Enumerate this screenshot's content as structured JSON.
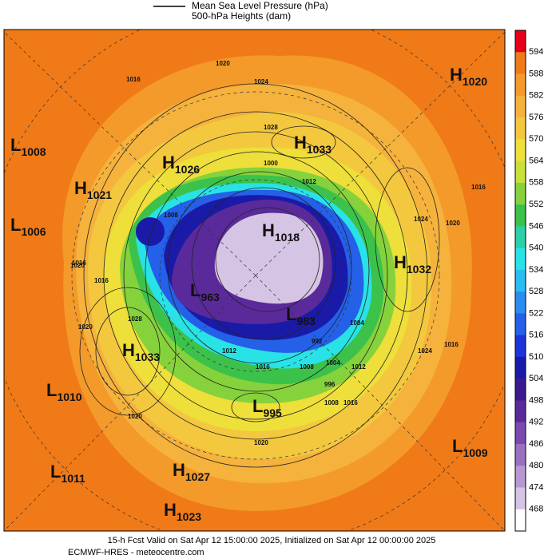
{
  "legend": {
    "mslp": "Mean Sea Level Pressure (hPa)",
    "heights": "500-hPa Heights (dam)"
  },
  "colorbar": {
    "labels": [
      "594",
      "588",
      "582",
      "576",
      "570",
      "564",
      "558",
      "552",
      "546",
      "540",
      "534",
      "528",
      "522",
      "516",
      "510",
      "504",
      "498",
      "492",
      "486",
      "480",
      "474",
      "468"
    ],
    "colors": [
      "#e8001a",
      "#f07a18",
      "#f39a2a",
      "#f5b23c",
      "#f3c83e",
      "#eedf3a",
      "#c8e03a",
      "#86d23c",
      "#3cc24a",
      "#2ccfa8",
      "#28e2e6",
      "#2bbcf0",
      "#2a8cf0",
      "#2460e8",
      "#1c34d8",
      "#1a1aa8",
      "#3a1a8c",
      "#5a2a9a",
      "#7a4aae",
      "#9a70c0",
      "#b898d2",
      "#d6c4e4",
      "#ffffff"
    ]
  },
  "centers": [
    {
      "type": "H",
      "value": "1020"
    },
    {
      "type": "L",
      "value": "1008"
    },
    {
      "type": "H",
      "value": "1033"
    },
    {
      "type": "H",
      "value": "1026"
    },
    {
      "type": "H",
      "value": "1021"
    },
    {
      "type": "L",
      "value": "1006"
    },
    {
      "type": "H",
      "value": "1018"
    },
    {
      "type": "H",
      "value": "1032"
    },
    {
      "type": "L",
      "value": "963"
    },
    {
      "type": "L",
      "value": "983"
    },
    {
      "type": "H",
      "value": "1033"
    },
    {
      "type": "L",
      "value": "1010"
    },
    {
      "type": "L",
      "value": "995"
    },
    {
      "type": "L",
      "value": "1009"
    },
    {
      "type": "L",
      "value": "1011"
    },
    {
      "type": "H",
      "value": "1027"
    },
    {
      "type": "H",
      "value": "1023"
    }
  ],
  "contour_labels": [
    "1016",
    "1024",
    "1020",
    "1028",
    "1000",
    "1012",
    "1008",
    "1024",
    "1020",
    "1016",
    "1016",
    "1020",
    "1028",
    "1024",
    "1012",
    "1016",
    "1008",
    "1004",
    "996",
    "1008",
    "1012",
    "1016",
    "1020",
    "1020",
    "1016",
    "1016",
    "992",
    "1004",
    "1020"
  ],
  "footer": {
    "line1": "15-h Fcst Valid on Sat Apr 12 15:00:00 2025, Initialized on Sat Apr 12 00:00:00 2025",
    "line2": "ECMWF-HRES - meteocentre.com"
  }
}
